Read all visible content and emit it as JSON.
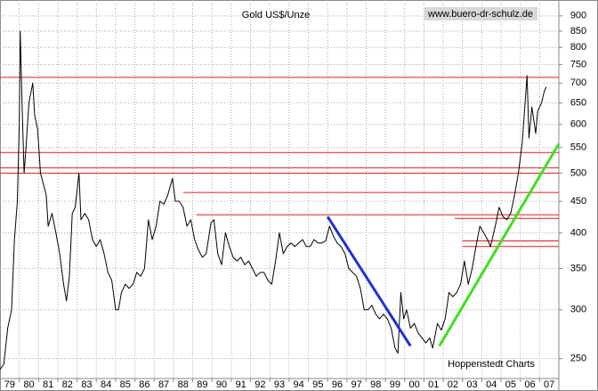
{
  "chart_data": {
    "type": "line",
    "title": "Gold US$/Unze",
    "source": "www.buero-dr-schulz.de",
    "credit": "Hoppenstedt Charts",
    "log_scale": true,
    "grid": true,
    "xlim": [
      1979,
      2008
    ],
    "ylim": [
      232,
      955
    ],
    "xticks": [
      {
        "value": 1979,
        "label": "79"
      },
      {
        "value": 1980,
        "label": "80"
      },
      {
        "value": 1981,
        "label": "81"
      },
      {
        "value": 1982,
        "label": "82"
      },
      {
        "value": 1983,
        "label": "83"
      },
      {
        "value": 1984,
        "label": "84"
      },
      {
        "value": 1985,
        "label": "85"
      },
      {
        "value": 1986,
        "label": "86"
      },
      {
        "value": 1987,
        "label": "87"
      },
      {
        "value": 1988,
        "label": "88"
      },
      {
        "value": 1989,
        "label": "89"
      },
      {
        "value": 1990,
        "label": "90"
      },
      {
        "value": 1991,
        "label": "91"
      },
      {
        "value": 1992,
        "label": "92"
      },
      {
        "value": 1993,
        "label": "93"
      },
      {
        "value": 1994,
        "label": "94"
      },
      {
        "value": 1995,
        "label": "95"
      },
      {
        "value": 1996,
        "label": "96"
      },
      {
        "value": 1997,
        "label": "97"
      },
      {
        "value": 1998,
        "label": "98"
      },
      {
        "value": 1999,
        "label": "99"
      },
      {
        "value": 2000,
        "label": "00"
      },
      {
        "value": 2001,
        "label": "01"
      },
      {
        "value": 2002,
        "label": "02"
      },
      {
        "value": 2003,
        "label": "03"
      },
      {
        "value": 2004,
        "label": "04"
      },
      {
        "value": 2005,
        "label": "05"
      },
      {
        "value": 2006,
        "label": "06"
      },
      {
        "value": 2007,
        "label": "07"
      }
    ],
    "yticks": [
      250,
      300,
      350,
      400,
      450,
      500,
      550,
      600,
      650,
      700,
      750,
      800,
      850,
      900
    ],
    "x": [
      1979.0,
      1979.2,
      1979.4,
      1979.6,
      1979.75,
      1979.9,
      1980.0,
      1980.05,
      1980.15,
      1980.25,
      1980.35,
      1980.5,
      1980.7,
      1980.8,
      1980.95,
      1981.1,
      1981.25,
      1981.4,
      1981.5,
      1981.7,
      1981.9,
      1982.1,
      1982.3,
      1982.45,
      1982.6,
      1982.75,
      1982.9,
      1983.1,
      1983.2,
      1983.4,
      1983.6,
      1983.8,
      1984.0,
      1984.2,
      1984.4,
      1984.6,
      1984.8,
      1985.0,
      1985.15,
      1985.3,
      1985.5,
      1985.7,
      1985.9,
      1986.1,
      1986.3,
      1986.5,
      1986.7,
      1986.9,
      1987.1,
      1987.3,
      1987.5,
      1987.7,
      1987.95,
      1988.1,
      1988.3,
      1988.5,
      1988.7,
      1988.9,
      1989.1,
      1989.3,
      1989.5,
      1989.7,
      1989.95,
      1990.1,
      1990.3,
      1990.5,
      1990.7,
      1990.9,
      1991.1,
      1991.3,
      1991.5,
      1991.7,
      1991.9,
      1992.1,
      1992.3,
      1992.5,
      1992.7,
      1992.9,
      1993.1,
      1993.3,
      1993.5,
      1993.7,
      1993.9,
      1994.1,
      1994.3,
      1994.5,
      1994.7,
      1994.9,
      1995.1,
      1995.3,
      1995.5,
      1995.7,
      1995.9,
      1996.1,
      1996.3,
      1996.5,
      1996.7,
      1996.9,
      1997.1,
      1997.3,
      1997.5,
      1997.7,
      1997.9,
      1998.1,
      1998.3,
      1998.5,
      1998.7,
      1998.9,
      1999.1,
      1999.3,
      1999.5,
      1999.65,
      1999.8,
      1999.95,
      2000.1,
      2000.3,
      2000.5,
      2000.7,
      2000.9,
      2001.1,
      2001.3,
      2001.45,
      2001.7,
      2001.9,
      2002.1,
      2002.3,
      2002.5,
      2002.7,
      2002.9,
      2003.1,
      2003.3,
      2003.5,
      2003.7,
      2003.9,
      2004.1,
      2004.3,
      2004.45,
      2004.7,
      2004.9,
      2005.1,
      2005.3,
      2005.5,
      2005.7,
      2005.9,
      2006.1,
      2006.35,
      2006.45,
      2006.6,
      2006.8,
      2006.9,
      2007.1,
      2007.25,
      2007.35
    ],
    "series": [
      {
        "color": "#000000",
        "values": [
          240,
          245,
          280,
          300,
          390,
          450,
          600,
          850,
          640,
          500,
          550,
          650,
          700,
          620,
          590,
          500,
          480,
          460,
          410,
          430,
          400,
          370,
          330,
          310,
          340,
          430,
          440,
          500,
          420,
          430,
          420,
          390,
          380,
          390,
          370,
          345,
          335,
          300,
          300,
          320,
          330,
          325,
          330,
          345,
          340,
          350,
          420,
          390,
          410,
          450,
          445,
          460,
          490,
          450,
          450,
          440,
          410,
          420,
          390,
          375,
          365,
          370,
          415,
          420,
          370,
          355,
          400,
          380,
          365,
          360,
          365,
          355,
          360,
          350,
          340,
          345,
          345,
          335,
          330,
          360,
          400,
          370,
          380,
          385,
          380,
          385,
          390,
          380,
          380,
          390,
          385,
          385,
          388,
          410,
          395,
          385,
          380,
          370,
          350,
          345,
          340,
          325,
          300,
          300,
          305,
          295,
          290,
          295,
          290,
          280,
          260,
          255,
          320,
          290,
          300,
          280,
          285,
          275,
          270,
          265,
          270,
          260,
          285,
          278,
          290,
          320,
          315,
          320,
          330,
          360,
          330,
          350,
          380,
          410,
          400,
          390,
          380,
          410,
          440,
          425,
          420,
          430,
          460,
          500,
          560,
          720,
          570,
          640,
          580,
          630,
          650,
          680,
          690
        ]
      }
    ],
    "reference_lines": [
      {
        "value": 715,
        "from": 1979,
        "color": "#d62020"
      },
      {
        "value": 540,
        "from": 1979,
        "color": "#d62020"
      },
      {
        "value": 510,
        "from": 1979,
        "color": "#d62020"
      },
      {
        "value": 500,
        "from": 1979,
        "color": "#d62020"
      },
      {
        "value": 465,
        "from": 1988.5,
        "color": "#d62020"
      },
      {
        "value": 428,
        "from": 1989.2,
        "color": "#d62020"
      },
      {
        "value": 422,
        "from": 2002.6,
        "color": "#d62020"
      },
      {
        "value": 388,
        "from": 2003.0,
        "color": "#d62020"
      },
      {
        "value": 380,
        "from": 2003.0,
        "color": "#d62020"
      }
    ],
    "trendlines": [
      {
        "x": [
          1996.0,
          2000.3
        ],
        "y": [
          425,
          262
        ],
        "color": "#1f2fd8"
      },
      {
        "x": [
          2001.8,
          2008.0
        ],
        "y": [
          262,
          558
        ],
        "color": "#3fe01f"
      }
    ]
  }
}
